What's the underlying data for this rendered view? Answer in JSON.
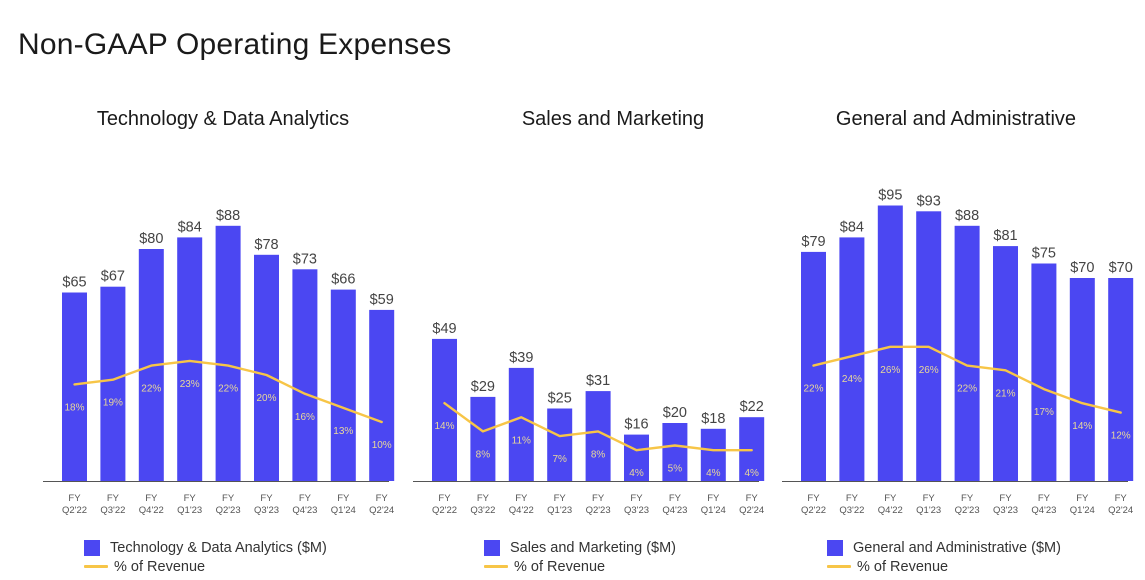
{
  "page": {
    "title": "Non-GAAP Operating Expenses"
  },
  "colors": {
    "bar": "#4B47F2",
    "line": "#F7C547",
    "axis": "#555555",
    "label": "#444444",
    "pct": "#E9D89A"
  },
  "chart_data": [
    {
      "type": "bar",
      "title": "Technology & Data Analytics",
      "categories": [
        "FY Q2'22",
        "FY Q3'22",
        "FY Q4'22",
        "FY Q1'23",
        "FY Q2'23",
        "FY Q3'23",
        "FY Q4'23",
        "FY Q1'24",
        "FY Q2'24"
      ],
      "tick_lines": [
        [
          "FY",
          "Q2'22"
        ],
        [
          "FY",
          "Q3'22"
        ],
        [
          "FY",
          "Q4'22"
        ],
        [
          "FY",
          "Q1'23"
        ],
        [
          "FY",
          "Q2'23"
        ],
        [
          "FY",
          "Q3'23"
        ],
        [
          "FY",
          "Q4'23"
        ],
        [
          "FY",
          "Q1'24"
        ],
        [
          "FY",
          "Q2'24"
        ]
      ],
      "series": [
        {
          "name": "Technology & Data Analytics ($M)",
          "kind": "bar",
          "values": [
            65,
            67,
            80,
            84,
            88,
            78,
            73,
            66,
            59
          ],
          "labels": [
            "$65",
            "$67",
            "$80",
            "$84",
            "$88",
            "$78",
            "$73",
            "$66",
            "$59"
          ]
        },
        {
          "name": "% of Revenue",
          "kind": "line",
          "values": [
            18,
            19,
            22,
            23,
            22,
            20,
            16,
            13,
            10
          ],
          "labels": [
            "18%",
            "19%",
            "22%",
            "23%",
            "22%",
            "20%",
            "16%",
            "13%",
            "10%"
          ]
        }
      ],
      "legend": [
        "Technology & Data Analytics ($M)",
        "% of Revenue"
      ],
      "bar_max": 100,
      "pct_max": 100
    },
    {
      "type": "bar",
      "title": "Sales and Marketing",
      "categories": [
        "FY Q2'22",
        "FY Q3'22",
        "FY Q4'22",
        "FY Q1'23",
        "FY Q2'23",
        "FY Q3'23",
        "FY Q4'23",
        "FY Q1'24",
        "FY Q2'24"
      ],
      "tick_lines": [
        [
          "FY",
          "Q2'22"
        ],
        [
          "FY",
          "Q3'22"
        ],
        [
          "FY",
          "Q4'22"
        ],
        [
          "FY",
          "Q1'23"
        ],
        [
          "FY",
          "Q2'23"
        ],
        [
          "FY",
          "Q3'23"
        ],
        [
          "FY",
          "Q4'23"
        ],
        [
          "FY",
          "Q1'24"
        ],
        [
          "FY",
          "Q2'24"
        ]
      ],
      "series": [
        {
          "name": "Sales and Marketing ($M)",
          "kind": "bar",
          "values": [
            49,
            29,
            39,
            25,
            31,
            16,
            20,
            18,
            22
          ],
          "labels": [
            "$49",
            "$29",
            "$39",
            "$25",
            "$31",
            "$16",
            "$20",
            "$18",
            "$22"
          ]
        },
        {
          "name": "% of Revenue",
          "kind": "line",
          "values": [
            14,
            8,
            11,
            7,
            8,
            4,
            5,
            4,
            4
          ],
          "labels": [
            "14%",
            "8%",
            "11%",
            "7%",
            "8%",
            "4%",
            "5%",
            "4%",
            "4%"
          ]
        }
      ],
      "legend": [
        "Sales and Marketing ($M)",
        "% of Revenue"
      ],
      "bar_max": 100,
      "pct_max": 100
    },
    {
      "type": "bar",
      "title": "General and Administrative",
      "categories": [
        "FY Q2'22",
        "FY Q3'22",
        "FY Q4'22",
        "FY Q1'23",
        "FY Q2'23",
        "FY Q3'23",
        "FY Q4'23",
        "FY Q1'24",
        "FY Q2'24"
      ],
      "tick_lines": [
        [
          "FY",
          "Q2'22"
        ],
        [
          "FY",
          "Q3'22"
        ],
        [
          "FY",
          "Q4'22"
        ],
        [
          "FY",
          "Q1'23"
        ],
        [
          "FY",
          "Q2'23"
        ],
        [
          "FY",
          "Q3'23"
        ],
        [
          "FY",
          "Q4'23"
        ],
        [
          "FY",
          "Q1'24"
        ],
        [
          "FY",
          "Q2'24"
        ]
      ],
      "series": [
        {
          "name": "General and Administrative ($M)",
          "kind": "bar",
          "values": [
            79,
            84,
            95,
            93,
            88,
            81,
            75,
            70,
            70
          ],
          "labels": [
            "$79",
            "$84",
            "$95",
            "$93",
            "$88",
            "$81",
            "$75",
            "$70",
            "$70"
          ]
        },
        {
          "name": "% of Revenue",
          "kind": "line",
          "values": [
            22,
            24,
            26,
            26,
            22,
            21,
            17,
            14,
            12
          ],
          "labels": [
            "22%",
            "24%",
            "26%",
            "26%",
            "22%",
            "21%",
            "17%",
            "14%",
            "12%"
          ]
        }
      ],
      "legend": [
        "General and Administrative ($M)",
        "% of Revenue"
      ],
      "bar_max": 100,
      "pct_max": 100
    }
  ]
}
